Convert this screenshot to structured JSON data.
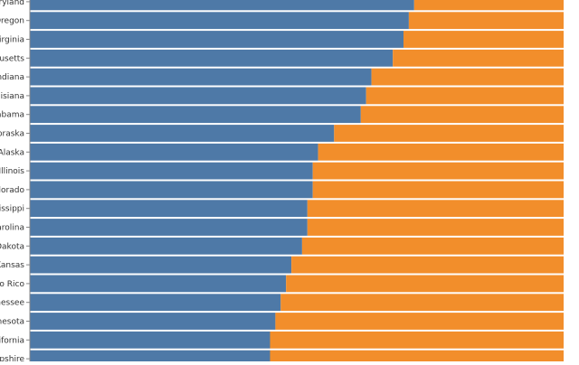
{
  "chart_data": {
    "type": "bar",
    "orientation": "horizontal",
    "stacked": "normalized",
    "title": "",
    "xlabel": "",
    "ylabel": "",
    "xlim": [
      0,
      1
    ],
    "grid": false,
    "legend": "none visible",
    "colors": {
      "series_a": "#4e79a7",
      "series_b": "#f28e2b"
    },
    "categories": [
      "ryland",
      "Oregon",
      "irginia",
      "usetts",
      "ndiana",
      "isiana",
      "abama",
      "braska",
      "Alaska",
      "Illinois",
      "lorado",
      "ssissippi",
      "arolina",
      "Dakota",
      "Kansas",
      "to Rico",
      "nessee",
      "nesota",
      "ifornia",
      "pshire"
    ],
    "series": [
      {
        "name": "",
        "values": [
          0.72,
          0.71,
          0.7,
          0.68,
          0.64,
          0.63,
          0.62,
          0.57,
          0.54,
          0.53,
          0.53,
          0.52,
          0.52,
          0.51,
          0.49,
          0.48,
          0.47,
          0.46,
          0.45,
          0.45
        ]
      },
      {
        "name": "",
        "values": [
          0.28,
          0.29,
          0.3,
          0.32,
          0.36,
          0.37,
          0.38,
          0.43,
          0.46,
          0.47,
          0.47,
          0.48,
          0.48,
          0.49,
          0.51,
          0.52,
          0.53,
          0.54,
          0.55,
          0.55
        ]
      }
    ]
  }
}
